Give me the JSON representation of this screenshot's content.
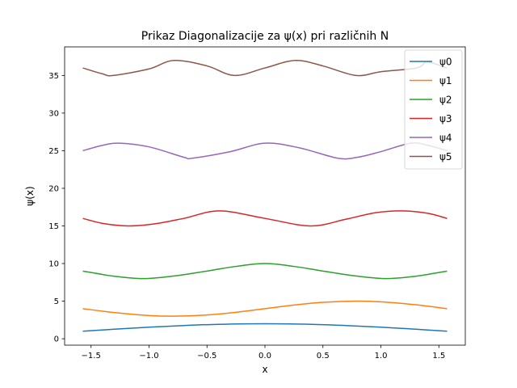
{
  "chart_data": {
    "type": "line",
    "title": "Prikaz Diagonalizacije za ψ(x) pri različnih N",
    "xlabel": "x",
    "ylabel": "ψ(x)",
    "xlim": [
      -1.7279,
      1.7279
    ],
    "ylim": [
      -0.85,
      38.8
    ],
    "xticks": [
      -1.5,
      -1.0,
      -0.5,
      0.0,
      0.5,
      1.0,
      1.5
    ],
    "xtick_labels": [
      "−1.5",
      "−1.0",
      "−0.5",
      "0.0",
      "0.5",
      "1.0",
      "1.5"
    ],
    "yticks": [
      0,
      5,
      10,
      15,
      20,
      25,
      30,
      35
    ],
    "ytick_labels": [
      "0",
      "5",
      "10",
      "15",
      "20",
      "25",
      "30",
      "35"
    ],
    "grid": false,
    "legend_position": "top-right",
    "series": [
      {
        "name": "ψ0",
        "color": "#1f77b4",
        "x": [
          -1.5708,
          -1.3,
          -1.0,
          -0.7,
          -0.4,
          0.0,
          0.4,
          0.7,
          1.0,
          1.3,
          1.5708
        ],
        "y": [
          1.0,
          1.27,
          1.54,
          1.76,
          1.92,
          2.0,
          1.92,
          1.76,
          1.54,
          1.27,
          1.0
        ]
      },
      {
        "name": "ψ1",
        "color": "#ff7f0e",
        "x": [
          -1.5708,
          -1.3,
          -1.0,
          -0.7854,
          -0.5,
          -0.25,
          0.0,
          0.25,
          0.5,
          0.7854,
          1.0,
          1.3,
          1.5708
        ],
        "y": [
          4.0,
          3.49,
          3.09,
          3.0,
          3.16,
          3.52,
          4.0,
          4.48,
          4.84,
          5.0,
          4.91,
          4.52,
          4.0
        ]
      },
      {
        "name": "ψ2",
        "color": "#2ca02c",
        "x": [
          -1.5708,
          -1.3,
          -1.0472,
          -0.8,
          -0.5,
          -0.25,
          0.0,
          0.25,
          0.5,
          0.8,
          1.0472,
          1.3,
          1.5708
        ],
        "y": [
          9.0,
          8.31,
          8.0,
          8.32,
          9.0,
          9.62,
          10.0,
          9.62,
          9.0,
          8.32,
          8.0,
          8.31,
          9.0
        ]
      },
      {
        "name": "ψ3",
        "color": "#d62728",
        "x": [
          -1.5708,
          -1.4,
          -1.1781,
          -0.95,
          -0.7,
          -0.3927,
          0.0,
          0.3927,
          0.7,
          0.95,
          1.1781,
          1.4,
          1.5708
        ],
        "y": [
          16.0,
          15.34,
          15.0,
          15.28,
          16.0,
          17.0,
          16.0,
          15.0,
          15.9,
          16.75,
          17.0,
          16.69,
          16.0
        ]
      },
      {
        "name": "ψ4",
        "color": "#9467bd",
        "x": [
          -1.5708,
          -1.4,
          -1.2566,
          -1.0,
          -0.7,
          -0.6283,
          -0.3,
          0.0,
          0.3,
          0.6283,
          0.8,
          1.0,
          1.2566,
          1.4,
          1.5708
        ],
        "y": [
          25.0,
          25.72,
          26.0,
          25.51,
          24.13,
          24.0,
          24.87,
          26.0,
          25.37,
          24.0,
          24.13,
          24.88,
          26.0,
          25.73,
          25.0
        ]
      },
      {
        "name": "ψ5",
        "color": "#8c564b",
        "x": [
          -1.5708,
          -1.4,
          -1.309,
          -1.0,
          -0.7854,
          -0.5,
          -0.2618,
          0.0,
          0.2618,
          0.5,
          0.7854,
          1.0,
          1.309,
          1.4,
          1.5708
        ],
        "y": [
          36.0,
          35.21,
          35.0,
          35.87,
          37.0,
          36.27,
          35.0,
          36.0,
          37.0,
          36.27,
          35.0,
          35.5,
          36.0,
          36.79,
          36.0
        ]
      }
    ]
  }
}
